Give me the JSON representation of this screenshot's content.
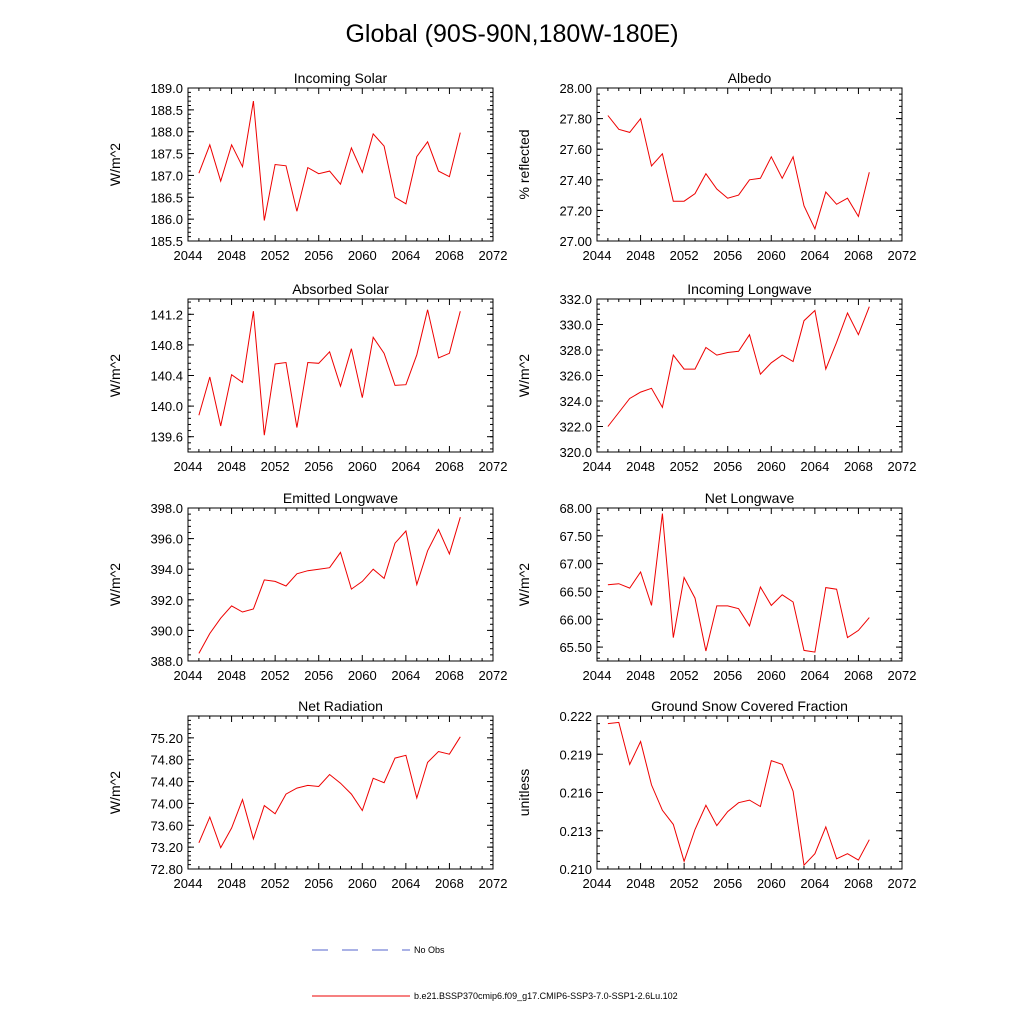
{
  "figure": {
    "title": "Global (90S-90N,180W-180E)"
  },
  "legend": [
    {
      "label": "No Obs",
      "style": "dashed",
      "color": "#5566cc"
    },
    {
      "label": "b.e21.BSSP370cmip6.f09_g17.CMIP6-SSP3-7.0-SSP1-2.6Lu.102",
      "style": "solid",
      "color": "#ee0000"
    }
  ],
  "colors": {
    "series": "#ee0000",
    "obs": "#5566cc",
    "axis": "#000000"
  },
  "chart_data": [
    {
      "type": "line",
      "title": "Incoming Solar",
      "ylabel": "W/m^2",
      "xlim": [
        2044,
        2072
      ],
      "ylim": [
        185.5,
        189.0
      ],
      "xticks": [
        2044,
        2048,
        2052,
        2056,
        2060,
        2064,
        2068,
        2072
      ],
      "yticks": [
        "185.5",
        "186.0",
        "186.5",
        "187.0",
        "187.5",
        "188.0",
        "188.5",
        "189.0"
      ],
      "x": [
        2045,
        2046,
        2047,
        2048,
        2049,
        2050,
        2051,
        2052,
        2053,
        2054,
        2055,
        2056,
        2057,
        2058,
        2059,
        2060,
        2061,
        2062,
        2063,
        2064,
        2065,
        2066,
        2067,
        2068,
        2069
      ],
      "series": [
        {
          "values": [
            187.05,
            187.7,
            186.87,
            187.7,
            187.2,
            188.7,
            185.97,
            187.25,
            187.22,
            186.18,
            187.18,
            187.04,
            187.1,
            186.8,
            187.63,
            187.07,
            187.95,
            187.67,
            186.5,
            186.35,
            187.43,
            187.77,
            187.1,
            186.97,
            187.98
          ]
        }
      ]
    },
    {
      "type": "line",
      "title": "Albedo",
      "ylabel": "% reflected",
      "xlim": [
        2044,
        2072
      ],
      "ylim": [
        27.0,
        28.0
      ],
      "xticks": [
        2044,
        2048,
        2052,
        2056,
        2060,
        2064,
        2068,
        2072
      ],
      "yticks": [
        "27.00",
        "27.20",
        "27.40",
        "27.60",
        "27.80",
        "28.00"
      ],
      "x": [
        2045,
        2046,
        2047,
        2048,
        2049,
        2050,
        2051,
        2052,
        2053,
        2054,
        2055,
        2056,
        2057,
        2058,
        2059,
        2060,
        2061,
        2062,
        2063,
        2064,
        2065,
        2066,
        2067,
        2068,
        2069
      ],
      "series": [
        {
          "values": [
            27.82,
            27.73,
            27.71,
            27.8,
            27.49,
            27.57,
            27.26,
            27.26,
            27.31,
            27.44,
            27.34,
            27.28,
            27.3,
            27.4,
            27.41,
            27.55,
            27.41,
            27.55,
            27.23,
            27.08,
            27.32,
            27.24,
            27.28,
            27.16,
            27.45
          ]
        }
      ]
    },
    {
      "type": "line",
      "title": "Absorbed Solar",
      "ylabel": "W/m^2",
      "xlim": [
        2044,
        2072
      ],
      "ylim": [
        139.4,
        141.4
      ],
      "xticks": [
        2044,
        2048,
        2052,
        2056,
        2060,
        2064,
        2068,
        2072
      ],
      "yticks": [
        "139.6",
        "140.0",
        "140.4",
        "140.8",
        "141.2"
      ],
      "x": [
        2045,
        2046,
        2047,
        2048,
        2049,
        2050,
        2051,
        2052,
        2053,
        2054,
        2055,
        2056,
        2057,
        2058,
        2059,
        2060,
        2061,
        2062,
        2063,
        2064,
        2065,
        2066,
        2067,
        2068,
        2069
      ],
      "series": [
        {
          "values": [
            139.88,
            140.38,
            139.74,
            140.41,
            140.31,
            141.24,
            139.62,
            140.55,
            140.57,
            139.72,
            140.57,
            140.56,
            140.71,
            140.26,
            140.75,
            140.11,
            140.9,
            140.69,
            140.27,
            140.28,
            140.67,
            141.26,
            140.63,
            140.69,
            141.24
          ]
        }
      ]
    },
    {
      "type": "line",
      "title": "Incoming Longwave",
      "ylabel": "W/m^2",
      "xlim": [
        2044,
        2072
      ],
      "ylim": [
        320.0,
        332.0
      ],
      "xticks": [
        2044,
        2048,
        2052,
        2056,
        2060,
        2064,
        2068,
        2072
      ],
      "yticks": [
        "320.0",
        "322.0",
        "324.0",
        "326.0",
        "328.0",
        "330.0",
        "332.0"
      ],
      "x": [
        2045,
        2046,
        2047,
        2048,
        2049,
        2050,
        2051,
        2052,
        2053,
        2054,
        2055,
        2056,
        2057,
        2058,
        2059,
        2060,
        2061,
        2062,
        2063,
        2064,
        2065,
        2066,
        2067,
        2068,
        2069
      ],
      "series": [
        {
          "values": [
            322.0,
            323.1,
            324.2,
            324.7,
            325.0,
            323.5,
            327.6,
            326.5,
            326.5,
            328.2,
            327.6,
            327.8,
            327.9,
            329.2,
            326.1,
            327.0,
            327.6,
            327.1,
            330.3,
            331.1,
            326.5,
            328.6,
            330.9,
            329.2,
            331.4
          ]
        }
      ]
    },
    {
      "type": "line",
      "title": "Emitted Longwave",
      "ylabel": "W/m^2",
      "xlim": [
        2044,
        2072
      ],
      "ylim": [
        388.0,
        398.0
      ],
      "xticks": [
        2044,
        2048,
        2052,
        2056,
        2060,
        2064,
        2068,
        2072
      ],
      "yticks": [
        "388.0",
        "390.0",
        "392.0",
        "394.0",
        "396.0",
        "398.0"
      ],
      "x": [
        2045,
        2046,
        2047,
        2048,
        2049,
        2050,
        2051,
        2052,
        2053,
        2054,
        2055,
        2056,
        2057,
        2058,
        2059,
        2060,
        2061,
        2062,
        2063,
        2064,
        2065,
        2066,
        2067,
        2068,
        2069
      ],
      "series": [
        {
          "values": [
            388.5,
            389.8,
            390.8,
            391.6,
            391.2,
            391.4,
            393.3,
            393.2,
            392.9,
            393.7,
            393.9,
            394.0,
            394.1,
            395.1,
            392.7,
            393.2,
            394.0,
            393.4,
            395.7,
            396.5,
            393.0,
            395.2,
            396.6,
            395.0,
            397.4
          ]
        }
      ]
    },
    {
      "type": "line",
      "title": "Net Longwave",
      "ylabel": "W/m^2",
      "xlim": [
        2044,
        2072
      ],
      "ylim": [
        65.25,
        68.0
      ],
      "xticks": [
        2044,
        2048,
        2052,
        2056,
        2060,
        2064,
        2068,
        2072
      ],
      "yticks": [
        "65.50",
        "66.00",
        "66.50",
        "67.00",
        "67.50",
        "68.00"
      ],
      "x": [
        2045,
        2046,
        2047,
        2048,
        2049,
        2050,
        2051,
        2052,
        2053,
        2054,
        2055,
        2056,
        2057,
        2058,
        2059,
        2060,
        2061,
        2062,
        2063,
        2064,
        2065,
        2066,
        2067,
        2068,
        2069
      ],
      "series": [
        {
          "values": [
            66.62,
            66.64,
            66.56,
            66.85,
            66.25,
            67.9,
            65.67,
            66.75,
            66.38,
            65.43,
            66.24,
            66.24,
            66.19,
            65.88,
            66.58,
            66.25,
            66.44,
            66.31,
            65.44,
            65.41,
            66.57,
            66.54,
            65.67,
            65.8,
            66.03
          ]
        }
      ]
    },
    {
      "type": "line",
      "title": "Net Radiation",
      "ylabel": "W/m^2",
      "xlim": [
        2044,
        2072
      ],
      "ylim": [
        72.8,
        75.6
      ],
      "xticks": [
        2044,
        2048,
        2052,
        2056,
        2060,
        2064,
        2068,
        2072
      ],
      "yticks": [
        "72.80",
        "73.20",
        "73.60",
        "74.00",
        "74.40",
        "74.80",
        "75.20"
      ],
      "x": [
        2045,
        2046,
        2047,
        2048,
        2049,
        2050,
        2051,
        2052,
        2053,
        2054,
        2055,
        2056,
        2057,
        2058,
        2059,
        2060,
        2061,
        2062,
        2063,
        2064,
        2065,
        2066,
        2067,
        2068,
        2069
      ],
      "series": [
        {
          "values": [
            73.28,
            73.75,
            73.19,
            73.55,
            74.07,
            73.35,
            73.96,
            73.81,
            74.17,
            74.28,
            74.33,
            74.31,
            74.53,
            74.37,
            74.17,
            73.87,
            74.46,
            74.38,
            74.83,
            74.88,
            74.1,
            74.75,
            74.95,
            74.9,
            75.22
          ]
        }
      ]
    },
    {
      "type": "line",
      "title": "Ground Snow Covered Fraction",
      "ylabel": "unitless",
      "xlim": [
        2044,
        2072
      ],
      "ylim": [
        0.21,
        0.222
      ],
      "xticks": [
        2044,
        2048,
        2052,
        2056,
        2060,
        2064,
        2068,
        2072
      ],
      "yticks": [
        "0.210",
        "0.213",
        "0.216",
        "0.219",
        "0.222"
      ],
      "x": [
        2045,
        2046,
        2047,
        2048,
        2049,
        2050,
        2051,
        2052,
        2053,
        2054,
        2055,
        2056,
        2057,
        2058,
        2059,
        2060,
        2061,
        2062,
        2063,
        2064,
        2065,
        2066,
        2067,
        2068,
        2069
      ],
      "series": [
        {
          "values": [
            0.2214,
            0.2215,
            0.2182,
            0.22,
            0.2166,
            0.2146,
            0.2135,
            0.2106,
            0.2131,
            0.215,
            0.2134,
            0.2145,
            0.2152,
            0.2154,
            0.2149,
            0.2185,
            0.2182,
            0.2161,
            0.2103,
            0.2112,
            0.2133,
            0.2108,
            0.2112,
            0.2107,
            0.2123
          ]
        }
      ]
    }
  ]
}
